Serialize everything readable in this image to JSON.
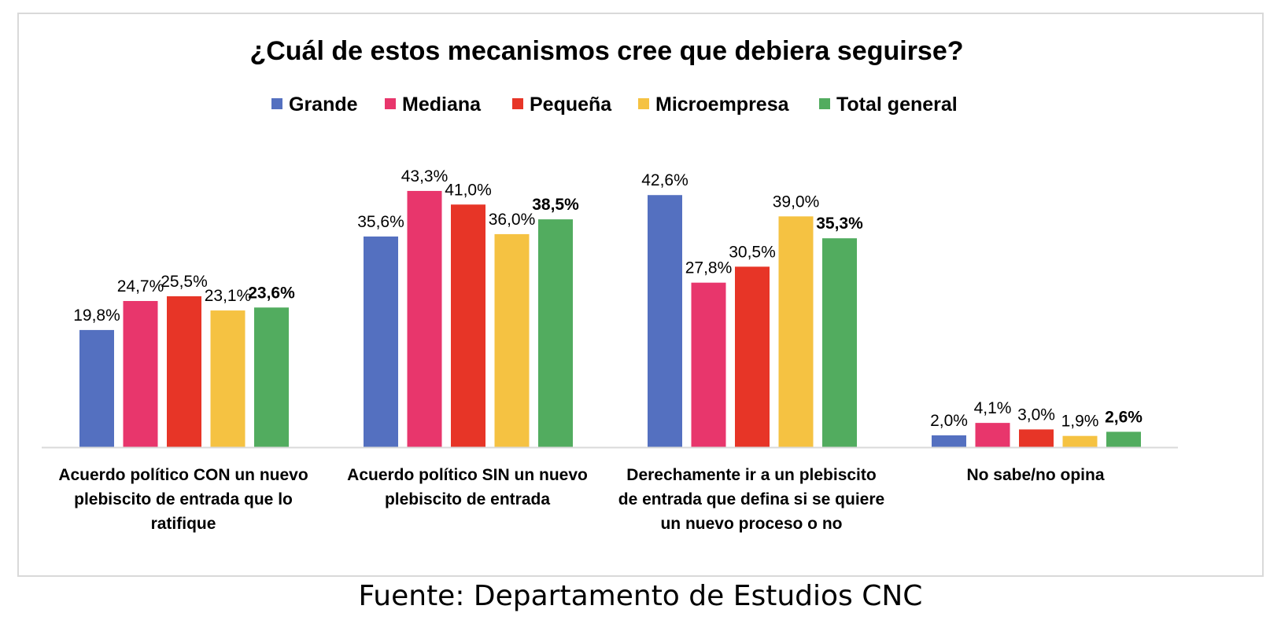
{
  "chart_data": {
    "type": "bar",
    "title": "¿Cuál de estos mecanismos cree  que debiera seguirse?",
    "categories": [
      [
        "Acuerdo político CON un nuevo",
        "plebiscito de entrada que lo",
        "ratifique"
      ],
      [
        "Acuerdo político SIN un nuevo",
        "plebiscito de entrada"
      ],
      [
        "Derechamente ir a un plebiscito",
        "de entrada que defina si se quiere",
        "un nuevo proceso o no"
      ],
      [
        "No sabe/no opina"
      ]
    ],
    "series": [
      {
        "name": "Grande",
        "color": "#5470c0",
        "values": [
          19.8,
          35.6,
          42.6,
          2.0
        ],
        "labels": [
          "19,8%",
          "35,6%",
          "42,6%",
          "2,0%"
        ]
      },
      {
        "name": "Mediana",
        "color": "#e8366c",
        "values": [
          24.7,
          43.3,
          27.8,
          4.1
        ],
        "labels": [
          "24,7%",
          "43,3%",
          "27,8%",
          "4,1%"
        ]
      },
      {
        "name": "Pequeña",
        "color": "#e73527",
        "values": [
          25.5,
          41.0,
          30.5,
          3.0
        ],
        "labels": [
          "25,5%",
          "41,0%",
          "30,5%",
          "3,0%"
        ]
      },
      {
        "name": "Microempresa",
        "color": "#f5c242",
        "values": [
          23.1,
          36.0,
          39.0,
          1.9
        ],
        "labels": [
          "23,1%",
          "36,0%",
          "39,0%",
          "1,9%"
        ]
      },
      {
        "name": "Total general",
        "color": "#52ac5f",
        "values": [
          23.6,
          38.5,
          35.3,
          2.6
        ],
        "labels": [
          "23,6%",
          "38,5%",
          "35,3%",
          "2,6%"
        ],
        "bold_labels": true
      }
    ],
    "ylim": [
      0,
      50
    ],
    "legend_position": "top-center",
    "grid": false
  },
  "source": "Fuente: Departamento de Estudios CNC"
}
